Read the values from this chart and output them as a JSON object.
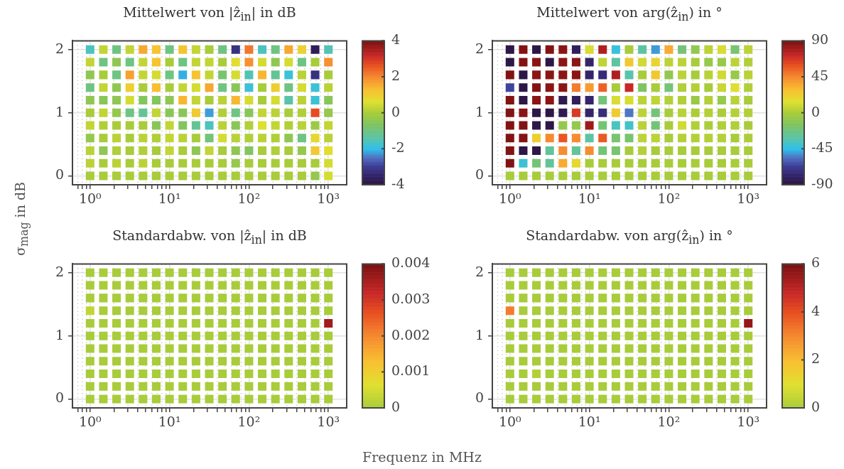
{
  "chart_data": [
    {
      "type": "heatmap",
      "title": "Mittelwert von |ẑ$_{in}$| in dB",
      "xlabel": "Frequenz in MHz",
      "ylabel": "σ$_{mag}$ in dB",
      "log": "x",
      "grid": true,
      "x": [
        1,
        1.468,
        2.154,
        3.162,
        4.642,
        6.813,
        10,
        14.68,
        21.54,
        31.62,
        46.42,
        68.13,
        100,
        146.8,
        215.4,
        316.2,
        464.2,
        681.3,
        1000
      ],
      "y": [
        2,
        1.8,
        1.6,
        1.4,
        1.2,
        1,
        0.8,
        0.6,
        0.4,
        0.2,
        0
      ],
      "xlim": [
        0.62,
        1700
      ],
      "ylim": [
        -0.14,
        2.14
      ],
      "xticks": [
        {
          "value": 0.7,
          "label": null
        },
        {
          "value": 0.8,
          "label": null
        },
        {
          "value": 0.9,
          "label": null
        },
        {
          "value": 1,
          "label": "10⁰"
        },
        {
          "value": 2,
          "label": null
        },
        {
          "value": 3,
          "label": null
        },
        {
          "value": 4,
          "label": null
        },
        {
          "value": 5,
          "label": null
        },
        {
          "value": 6,
          "label": null
        },
        {
          "value": 7,
          "label": null
        },
        {
          "value": 8,
          "label": null
        },
        {
          "value": 9,
          "label": null
        },
        {
          "value": 10,
          "label": "10¹"
        },
        {
          "value": 20,
          "label": null
        },
        {
          "value": 30,
          "label": null
        },
        {
          "value": 40,
          "label": null
        },
        {
          "value": 50,
          "label": null
        },
        {
          "value": 60,
          "label": null
        },
        {
          "value": 70,
          "label": null
        },
        {
          "value": 80,
          "label": null
        },
        {
          "value": 90,
          "label": null
        },
        {
          "value": 100,
          "label": "10²"
        },
        {
          "value": 200,
          "label": null
        },
        {
          "value": 300,
          "label": null
        },
        {
          "value": 400,
          "label": null
        },
        {
          "value": 500,
          "label": null
        },
        {
          "value": 600,
          "label": null
        },
        {
          "value": 700,
          "label": null
        },
        {
          "value": 800,
          "label": null
        },
        {
          "value": 900,
          "label": null
        },
        {
          "value": 1000,
          "label": "10³"
        }
      ],
      "yticks": [
        0,
        1,
        2
      ],
      "clim": [
        -4,
        4
      ],
      "cticks": [
        -4,
        -2,
        0,
        2,
        4
      ],
      "cells": [
        [
          -1.6,
          0.3,
          -1,
          0.3,
          1.6,
          1.2,
          -1,
          1.2,
          0.3,
          0,
          -1,
          -3.2,
          2.2,
          -1.6,
          -1,
          1.6,
          0.9,
          -3.7,
          -1.5
        ],
        [
          0.3,
          -1,
          -0.4,
          -1,
          0.3,
          1.2,
          0,
          -1,
          0.3,
          0.3,
          0,
          0.7,
          1.9,
          0.5,
          -0.4,
          0.5,
          -1,
          0,
          1.9
        ],
        [
          -0.4,
          0,
          -1,
          1.7,
          0.3,
          0.5,
          -1,
          -2.1,
          1.2,
          0.3,
          -0.8,
          0.5,
          -1.5,
          1.4,
          -1.2,
          -1.8,
          0.2,
          -3.2,
          0
        ],
        [
          -1,
          0.3,
          -0.4,
          1,
          0,
          1.3,
          0,
          0.3,
          0.5,
          1.6,
          -1,
          -0.5,
          -1.8,
          0,
          1,
          -1,
          0.5,
          -1.8,
          0.2
        ],
        [
          -0.4,
          -0.5,
          -0.4,
          0.5,
          -0.6,
          -0.6,
          -0.4,
          1.4,
          0.3,
          0,
          0.2,
          1.4,
          0.5,
          0,
          0.5,
          -1.4,
          0.2,
          -1.8,
          -0.5
        ],
        [
          0,
          0.3,
          -0.3,
          -1,
          -1.2,
          0.3,
          -0.5,
          -0.5,
          1.1,
          -2.2,
          0.1,
          -1,
          -0.5,
          0.3,
          0.2,
          0,
          0.1,
          2.7,
          -0.3
        ],
        [
          0.3,
          0.1,
          0,
          0,
          0,
          -0.5,
          0.3,
          -0.6,
          -1.2,
          -1.6,
          0.2,
          -0.5,
          0.1,
          0.6,
          0.3,
          0.1,
          0.2,
          -0.2,
          0.3
        ],
        [
          -0.3,
          0,
          0.2,
          0,
          0.2,
          0.1,
          0.3,
          0.2,
          0,
          -0.9,
          0.5,
          0.2,
          0.1,
          0.2,
          0.1,
          -0.4,
          -1,
          0.8,
          0.2
        ],
        [
          0.2,
          -0.4,
          0.1,
          0,
          0.1,
          0,
          0.3,
          0,
          -0.4,
          0.3,
          0,
          -0.4,
          -0.6,
          0,
          0.1,
          0,
          -0.3,
          1.1,
          0.7
        ],
        [
          0.2,
          0,
          0.2,
          0,
          0.2,
          0,
          0,
          0,
          0,
          0,
          0,
          -0.3,
          0,
          0,
          0,
          0,
          0,
          0,
          0.5
        ],
        [
          0,
          0,
          0,
          0,
          0,
          0,
          0,
          0,
          0,
          0,
          0,
          0,
          0,
          0,
          0,
          0,
          0,
          -0.3,
          0.5
        ]
      ]
    },
    {
      "type": "heatmap",
      "title": "Mittelwert von arg(ẑ$_{in}$) in °",
      "log": "x",
      "grid": true,
      "x": [
        1,
        1.468,
        2.154,
        3.162,
        4.642,
        6.813,
        10,
        14.68,
        21.54,
        31.62,
        46.42,
        68.13,
        100,
        146.8,
        215.4,
        316.2,
        464.2,
        681.3,
        1000
      ],
      "y": [
        2,
        1.8,
        1.6,
        1.4,
        1.2,
        1,
        0.8,
        0.6,
        0.4,
        0.2,
        0
      ],
      "xlim": [
        0.62,
        1700
      ],
      "ylim": [
        -0.14,
        2.14
      ],
      "xticks": [
        {
          "value": 0.7,
          "label": null
        },
        {
          "value": 0.8,
          "label": null
        },
        {
          "value": 0.9,
          "label": null
        },
        {
          "value": 1,
          "label": "10⁰"
        },
        {
          "value": 2,
          "label": null
        },
        {
          "value": 3,
          "label": null
        },
        {
          "value": 4,
          "label": null
        },
        {
          "value": 5,
          "label": null
        },
        {
          "value": 6,
          "label": null
        },
        {
          "value": 7,
          "label": null
        },
        {
          "value": 8,
          "label": null
        },
        {
          "value": 9,
          "label": null
        },
        {
          "value": 10,
          "label": "10¹"
        },
        {
          "value": 20,
          "label": null
        },
        {
          "value": 30,
          "label": null
        },
        {
          "value": 40,
          "label": null
        },
        {
          "value": 50,
          "label": null
        },
        {
          "value": 60,
          "label": null
        },
        {
          "value": 70,
          "label": null
        },
        {
          "value": 80,
          "label": null
        },
        {
          "value": 90,
          "label": null
        },
        {
          "value": 100,
          "label": "10²"
        },
        {
          "value": 200,
          "label": null
        },
        {
          "value": 300,
          "label": null
        },
        {
          "value": 400,
          "label": null
        },
        {
          "value": 500,
          "label": null
        },
        {
          "value": 600,
          "label": null
        },
        {
          "value": 700,
          "label": null
        },
        {
          "value": 800,
          "label": null
        },
        {
          "value": 900,
          "label": null
        },
        {
          "value": 1000,
          "label": "10³"
        }
      ],
      "yticks": [
        0,
        1,
        2
      ],
      "clim": [
        -90,
        90
      ],
      "cticks": [
        -90,
        -45,
        0,
        45,
        90
      ],
      "cells": [
        [
          -88,
          88,
          -88,
          88,
          86,
          -82,
          12,
          78,
          -42,
          0,
          -30,
          -50,
          35,
          -20,
          -8,
          5,
          12,
          -18,
          5
        ],
        [
          -88,
          88,
          86,
          -88,
          86,
          86,
          -78,
          6,
          -30,
          25,
          10,
          20,
          5,
          5,
          0,
          -6,
          -6,
          5,
          2
        ],
        [
          88,
          -88,
          86,
          86,
          86,
          86,
          -78,
          -75,
          78,
          -32,
          0,
          25,
          -8,
          5,
          0,
          4,
          10,
          -6,
          4
        ],
        [
          -65,
          -88,
          88,
          86,
          86,
          48,
          40,
          55,
          0,
          72,
          -15,
          0,
          -20,
          2,
          3,
          0,
          8,
          14,
          2
        ],
        [
          88,
          -88,
          86,
          86,
          -85,
          -82,
          -78,
          -20,
          12,
          12,
          5,
          6,
          3,
          2,
          -5,
          3,
          -6,
          4,
          0
        ],
        [
          88,
          86,
          -88,
          -88,
          -85,
          66,
          -78,
          -74,
          24,
          -55,
          5,
          -20,
          0,
          4,
          1,
          3,
          1,
          3,
          2
        ],
        [
          88,
          88,
          -88,
          -88,
          -7,
          -7,
          82,
          -20,
          -36,
          -38,
          4,
          -20,
          0,
          10,
          2,
          1,
          2,
          2,
          0
        ],
        [
          88,
          88,
          22,
          45,
          58,
          44,
          -30,
          57,
          -18,
          -18,
          5,
          5,
          0,
          3,
          3,
          3,
          3,
          0,
          1
        ],
        [
          88,
          -88,
          -88,
          -28,
          44,
          -28,
          44,
          -20,
          -18,
          0,
          3,
          0,
          0,
          0,
          0,
          0,
          0,
          0,
          0
        ],
        [
          88,
          -40,
          -20,
          -28,
          35,
          18,
          0,
          0,
          0,
          0,
          0,
          0,
          0,
          0,
          0,
          0,
          0,
          0,
          0
        ],
        [
          0,
          0,
          0,
          0,
          0,
          0,
          0,
          0,
          0,
          0,
          0,
          0,
          0,
          0,
          0,
          0,
          0,
          0,
          0
        ]
      ]
    },
    {
      "type": "heatmap",
      "title": "Standardabw. von |ẑ$_{in}$| in dB",
      "log": "x",
      "grid": true,
      "x": [
        1,
        1.468,
        2.154,
        3.162,
        4.642,
        6.813,
        10,
        14.68,
        21.54,
        31.62,
        46.42,
        68.13,
        100,
        146.8,
        215.4,
        316.2,
        464.2,
        681.3,
        1000
      ],
      "y": [
        2,
        1.8,
        1.6,
        1.4,
        1.2,
        1,
        0.8,
        0.6,
        0.4,
        0.2,
        0
      ],
      "xlim": [
        0.62,
        1700
      ],
      "ylim": [
        -0.14,
        2.14
      ],
      "xticks": [
        {
          "value": 0.7,
          "label": null
        },
        {
          "value": 0.8,
          "label": null
        },
        {
          "value": 0.9,
          "label": null
        },
        {
          "value": 1,
          "label": "10⁰"
        },
        {
          "value": 2,
          "label": null
        },
        {
          "value": 3,
          "label": null
        },
        {
          "value": 4,
          "label": null
        },
        {
          "value": 5,
          "label": null
        },
        {
          "value": 6,
          "label": null
        },
        {
          "value": 7,
          "label": null
        },
        {
          "value": 8,
          "label": null
        },
        {
          "value": 9,
          "label": null
        },
        {
          "value": 10,
          "label": "10¹"
        },
        {
          "value": 20,
          "label": null
        },
        {
          "value": 30,
          "label": null
        },
        {
          "value": 40,
          "label": null
        },
        {
          "value": 50,
          "label": null
        },
        {
          "value": 60,
          "label": null
        },
        {
          "value": 70,
          "label": null
        },
        {
          "value": 80,
          "label": null
        },
        {
          "value": 90,
          "label": null
        },
        {
          "value": 100,
          "label": "10²"
        },
        {
          "value": 200,
          "label": null
        },
        {
          "value": 300,
          "label": null
        },
        {
          "value": 400,
          "label": null
        },
        {
          "value": 500,
          "label": null
        },
        {
          "value": 600,
          "label": null
        },
        {
          "value": 700,
          "label": null
        },
        {
          "value": 800,
          "label": null
        },
        {
          "value": 900,
          "label": null
        },
        {
          "value": 1000,
          "label": "10³"
        }
      ],
      "yticks": [
        0,
        1,
        2
      ],
      "clim": [
        0,
        0.004
      ],
      "cticks": [
        0,
        0.001,
        0.002,
        0.003,
        0.004
      ],
      "cells": [
        [
          0,
          0,
          0,
          0,
          0,
          0,
          0,
          0,
          0,
          0,
          0,
          0,
          0,
          0,
          0,
          0,
          0,
          0,
          0
        ],
        [
          0,
          0,
          0,
          0,
          0,
          0,
          0,
          0,
          0,
          0,
          0,
          0,
          0,
          0,
          0,
          0,
          0,
          0,
          0
        ],
        [
          0,
          0,
          0,
          0,
          0,
          0,
          0,
          0,
          0,
          0,
          0,
          0,
          0,
          0,
          0,
          0,
          0,
          0,
          0
        ],
        [
          0.0003,
          0,
          0,
          0,
          0,
          0,
          0,
          0,
          0,
          0,
          0,
          0,
          0,
          0,
          0,
          0,
          0,
          0,
          0
        ],
        [
          0,
          0,
          0,
          0,
          0,
          0,
          0,
          0,
          0,
          0,
          0,
          0,
          0,
          0,
          0,
          0,
          0,
          0,
          0.0036
        ],
        [
          0,
          0,
          0,
          0,
          0,
          0,
          0,
          0,
          0,
          0,
          0,
          0,
          0,
          0,
          0,
          0,
          0,
          0,
          0
        ],
        [
          0,
          0,
          0,
          0,
          0,
          0,
          0,
          0,
          0,
          0,
          0,
          0,
          0,
          0,
          0,
          0,
          0,
          0,
          0
        ],
        [
          0,
          0,
          0,
          0,
          0,
          0,
          0,
          0,
          0,
          0,
          0,
          0,
          0,
          0,
          0,
          0,
          0,
          0,
          0
        ],
        [
          0,
          0,
          0,
          0,
          0,
          0,
          0,
          0,
          0,
          0,
          0,
          0,
          0,
          0,
          0,
          0,
          0,
          0,
          0
        ],
        [
          0,
          0,
          0,
          0,
          0,
          0,
          0,
          0,
          0,
          0,
          0,
          0,
          0,
          0,
          0,
          0,
          0,
          0,
          0
        ],
        [
          0,
          0,
          0,
          0,
          0,
          0,
          0,
          0,
          0,
          0,
          0,
          0,
          0,
          0,
          0,
          0,
          0,
          0,
          0
        ]
      ]
    },
    {
      "type": "heatmap",
      "title": "Standardabw. von arg(ẑ$_{in}$) in °",
      "log": "x",
      "grid": true,
      "x": [
        1,
        1.468,
        2.154,
        3.162,
        4.642,
        6.813,
        10,
        14.68,
        21.54,
        31.62,
        46.42,
        68.13,
        100,
        146.8,
        215.4,
        316.2,
        464.2,
        681.3,
        1000
      ],
      "y": [
        2,
        1.8,
        1.6,
        1.4,
        1.2,
        1,
        0.8,
        0.6,
        0.4,
        0.2,
        0
      ],
      "xlim": [
        0.62,
        1700
      ],
      "ylim": [
        -0.14,
        2.14
      ],
      "xticks": [
        {
          "value": 0.7,
          "label": null
        },
        {
          "value": 0.8,
          "label": null
        },
        {
          "value": 0.9,
          "label": null
        },
        {
          "value": 1,
          "label": "10⁰"
        },
        {
          "value": 2,
          "label": null
        },
        {
          "value": 3,
          "label": null
        },
        {
          "value": 4,
          "label": null
        },
        {
          "value": 5,
          "label": null
        },
        {
          "value": 6,
          "label": null
        },
        {
          "value": 7,
          "label": null
        },
        {
          "value": 8,
          "label": null
        },
        {
          "value": 9,
          "label": null
        },
        {
          "value": 10,
          "label": "10¹"
        },
        {
          "value": 20,
          "label": null
        },
        {
          "value": 30,
          "label": null
        },
        {
          "value": 40,
          "label": null
        },
        {
          "value": 50,
          "label": null
        },
        {
          "value": 60,
          "label": null
        },
        {
          "value": 70,
          "label": null
        },
        {
          "value": 80,
          "label": null
        },
        {
          "value": 90,
          "label": null
        },
        {
          "value": 100,
          "label": "10²"
        },
        {
          "value": 200,
          "label": null
        },
        {
          "value": 300,
          "label": null
        },
        {
          "value": 400,
          "label": null
        },
        {
          "value": 500,
          "label": null
        },
        {
          "value": 600,
          "label": null
        },
        {
          "value": 700,
          "label": null
        },
        {
          "value": 800,
          "label": null
        },
        {
          "value": 900,
          "label": null
        },
        {
          "value": 1000,
          "label": "10³"
        }
      ],
      "yticks": [
        0,
        1,
        2
      ],
      "clim": [
        0,
        6
      ],
      "cticks": [
        0,
        2,
        4,
        6
      ],
      "cells": [
        [
          0,
          0,
          0,
          0,
          0,
          0,
          0,
          0,
          0,
          0,
          0,
          0,
          0,
          0,
          0,
          0,
          0,
          0,
          0
        ],
        [
          0,
          0,
          0,
          0,
          0,
          0,
          0,
          0,
          0,
          0,
          0,
          0,
          0,
          0,
          0,
          0,
          0,
          0,
          0
        ],
        [
          0,
          0,
          0,
          0,
          0,
          0,
          0,
          0,
          0,
          0,
          0,
          0,
          0,
          0,
          0,
          0,
          0,
          0,
          0
        ],
        [
          3.2,
          0,
          0,
          0,
          0,
          0,
          0,
          0,
          0,
          0,
          0,
          0,
          0,
          0,
          0,
          0,
          0,
          0,
          0
        ],
        [
          0,
          0,
          0,
          0,
          0,
          0,
          0,
          0,
          0,
          0,
          0,
          0,
          0,
          0,
          0,
          0,
          0,
          0,
          5.6
        ],
        [
          0,
          0,
          0,
          0,
          0,
          0,
          0,
          0,
          0,
          0,
          0,
          0,
          0,
          0,
          0,
          0,
          0,
          0,
          0
        ],
        [
          0,
          0,
          0,
          0,
          0,
          0,
          0,
          0,
          0,
          0,
          0,
          0,
          0,
          0,
          0,
          0,
          0,
          0,
          0
        ],
        [
          0,
          0,
          0,
          0,
          0,
          0,
          0,
          0,
          0,
          0,
          0,
          0,
          0,
          0,
          0,
          0,
          0,
          0,
          0
        ],
        [
          0,
          0,
          0.2,
          0,
          0,
          0,
          0,
          0,
          0,
          0,
          0,
          0,
          0,
          0,
          0,
          0,
          0,
          0,
          0
        ],
        [
          0,
          0,
          0,
          0,
          0,
          0,
          0,
          0,
          0,
          0,
          0,
          0,
          0,
          0,
          0,
          0,
          0,
          0,
          0
        ],
        [
          0,
          0,
          0,
          0,
          0,
          0,
          0,
          0,
          0,
          0,
          0,
          0,
          0,
          0,
          0,
          0,
          0,
          0,
          0
        ]
      ]
    }
  ]
}
